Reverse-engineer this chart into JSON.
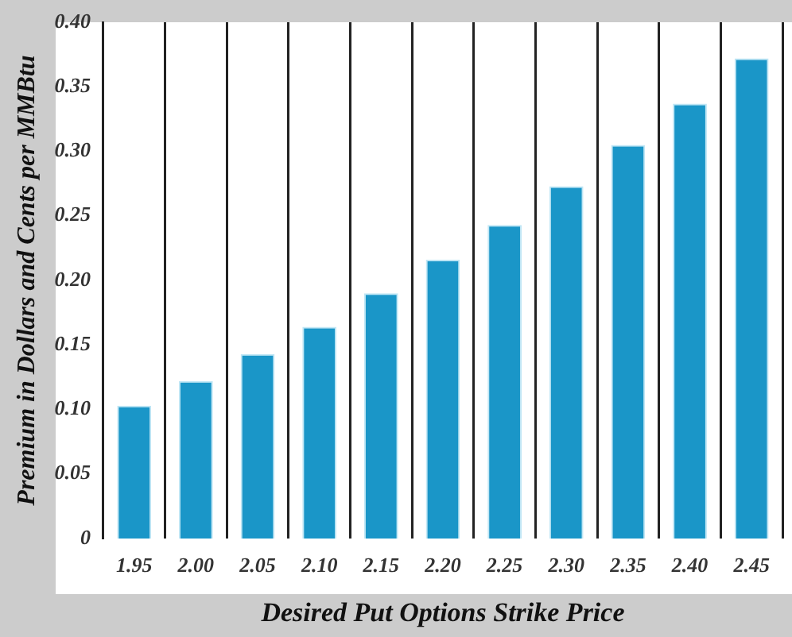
{
  "chart_data": {
    "type": "bar",
    "xlabel": "Desired Put Options Strike Price",
    "ylabel": "Premium in Dollars and Cents per MMBtu",
    "categories": [
      "1.95",
      "2.00",
      "2.05",
      "2.10",
      "2.15",
      "2.20",
      "2.25",
      "2.30",
      "2.35",
      "2.40",
      "2.45"
    ],
    "values": [
      0.103,
      0.122,
      0.143,
      0.164,
      0.19,
      0.216,
      0.243,
      0.273,
      0.305,
      0.337,
      0.372
    ],
    "color": "#1a96c8",
    "ylim": [
      0,
      0.4
    ],
    "yticks": [
      0,
      {
        "value": 0.05,
        "label": "0.05"
      },
      {
        "value": 0.1,
        "label": "0.10"
      },
      {
        "value": 0.15,
        "label": "0.15"
      },
      {
        "value": 0.2,
        "label": "0.20"
      },
      {
        "value": 0.25,
        "label": "0.25"
      },
      {
        "value": 0.3,
        "label": "0.30"
      },
      {
        "value": 0.35,
        "label": "0.35"
      },
      {
        "value": 0.4,
        "label": "0.40"
      }
    ],
    "grid": "x",
    "legend": false
  }
}
